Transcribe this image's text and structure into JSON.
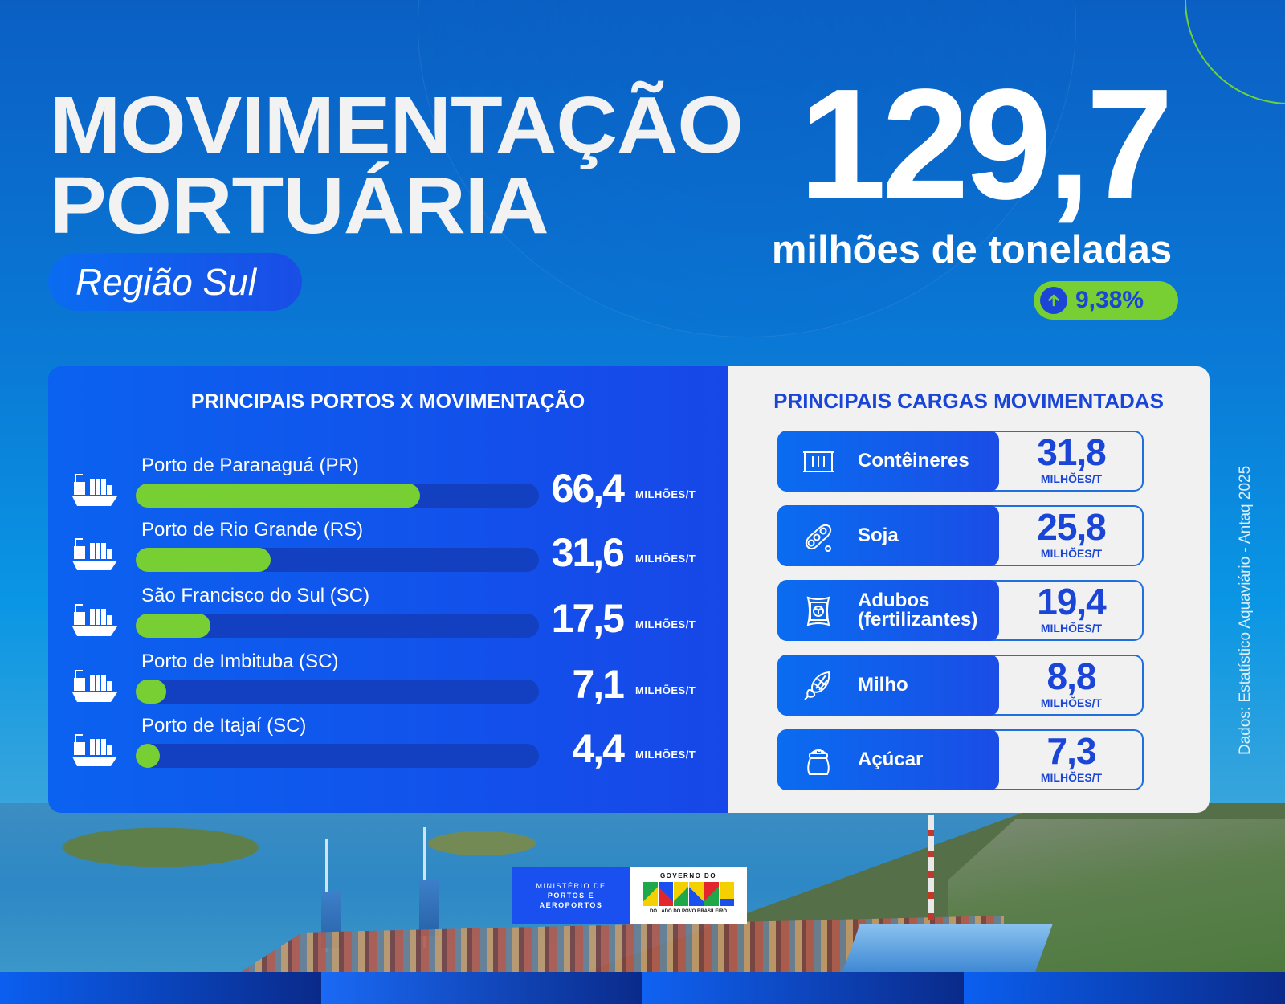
{
  "header": {
    "title_line1": "MOVIMENTAÇÃO",
    "title_line2": "PORTUÁRIA",
    "region": "Região Sul"
  },
  "summary": {
    "total_value": "129,7",
    "total_unit": "milhões de toneladas",
    "growth": "9,38%",
    "growth_icon": "arrow-up-circle-icon"
  },
  "ports_panel": {
    "title": "PRINCIPAIS PORTOS X MOVIMENTAÇÃO",
    "unit": "MILHÕES/T",
    "icon": "cargo-ship-icon",
    "max_value": 66.4,
    "items": [
      {
        "name": "Porto de Paranaguá (PR)",
        "value": "66,4",
        "numeric": 66.4
      },
      {
        "name": "Porto de Rio Grande (RS)",
        "value": "31,6",
        "numeric": 31.6
      },
      {
        "name": "São Francisco do Sul (SC)",
        "value": "17,5",
        "numeric": 17.5
      },
      {
        "name": "Porto de Imbituba (SC)",
        "value": "7,1",
        "numeric": 7.1
      },
      {
        "name": "Porto de Itajaí (SC)",
        "value": "4,4",
        "numeric": 4.4
      }
    ]
  },
  "cargo_panel": {
    "title": "PRINCIPAIS CARGAS MOVIMENTADAS",
    "unit": "MILHÕES/T",
    "items": [
      {
        "name": "Contêineres",
        "value": "31,8",
        "icon": "container-icon"
      },
      {
        "name": "Soja",
        "value": "25,8",
        "icon": "soybean-icon"
      },
      {
        "name": "Adubos (fertilizantes)",
        "value": "19,4",
        "icon": "fertilizer-bag-icon"
      },
      {
        "name": "Milho",
        "value": "8,8",
        "icon": "corn-icon"
      },
      {
        "name": "Açúcar",
        "value": "7,3",
        "icon": "sugar-sack-icon"
      }
    ]
  },
  "source": "Dados: Estatístico Aquaviário - Antaq 2025",
  "logos": {
    "ministry_line1": "MINISTÉRIO DE",
    "ministry_line2": "PORTOS E",
    "ministry_line3": "AEROPORTOS",
    "gov_top": "GOVERNO DO",
    "gov_word": "BRASIL",
    "gov_bottom": "DO LADO DO POVO BRASILEIRO"
  },
  "colors": {
    "accent_green": "#77cf34",
    "accent_blue": "#1a45d6",
    "panel_blue": "#1747e8",
    "bar_track": "#1240c0",
    "panel_light": "#f1f1f1"
  },
  "chart_data": {
    "type": "bar",
    "title": "PRINCIPAIS PORTOS X MOVIMENTAÇÃO",
    "categories": [
      "Porto de Paranaguá (PR)",
      "Porto de Rio Grande (RS)",
      "São Francisco do Sul (SC)",
      "Porto de Imbituba (SC)",
      "Porto de Itajaí (SC)"
    ],
    "values": [
      66.4,
      31.6,
      17.5,
      7.1,
      4.4
    ],
    "unit": "milhões de toneladas",
    "orientation": "horizontal",
    "secondary": {
      "title": "PRINCIPAIS CARGAS MOVIMENTADAS",
      "categories": [
        "Contêineres",
        "Soja",
        "Adubos (fertilizantes)",
        "Milho",
        "Açúcar"
      ],
      "values": [
        31.8,
        25.8,
        19.4,
        8.8,
        7.3
      ]
    }
  }
}
